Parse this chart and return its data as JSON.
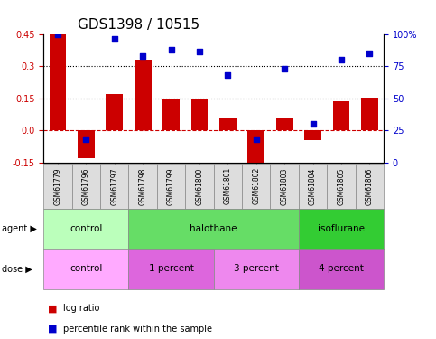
{
  "title": "GDS1398 / 10515",
  "categories": [
    "GSM61779",
    "GSM61796",
    "GSM61797",
    "GSM61798",
    "GSM61799",
    "GSM61800",
    "GSM61801",
    "GSM61802",
    "GSM61803",
    "GSM61804",
    "GSM61805",
    "GSM61806"
  ],
  "log_ratio": [
    0.45,
    -0.13,
    0.17,
    0.33,
    0.145,
    0.143,
    0.055,
    -0.155,
    0.06,
    -0.045,
    0.135,
    0.155
  ],
  "percentile_rank": [
    100,
    18,
    96,
    83,
    88,
    86,
    68,
    18,
    73,
    30,
    80,
    85
  ],
  "ylim_left": [
    -0.15,
    0.45
  ],
  "ylim_right": [
    0,
    100
  ],
  "yticks_left": [
    -0.15,
    0.0,
    0.15,
    0.3,
    0.45
  ],
  "yticks_right": [
    0,
    25,
    50,
    75,
    100
  ],
  "hlines": [
    0.15,
    0.3
  ],
  "bar_color": "#cc0000",
  "scatter_color": "#0000cc",
  "zero_line_color": "#cc0000",
  "agent_groups": [
    {
      "label": "control",
      "start": 0,
      "end": 3,
      "color": "#bbffbb"
    },
    {
      "label": "halothane",
      "start": 3,
      "end": 9,
      "color": "#66dd66"
    },
    {
      "label": "isoflurane",
      "start": 9,
      "end": 12,
      "color": "#33cc33"
    }
  ],
  "dose_groups": [
    {
      "label": "control",
      "start": 0,
      "end": 3,
      "color": "#ffaaff"
    },
    {
      "label": "1 percent",
      "start": 3,
      "end": 6,
      "color": "#dd66dd"
    },
    {
      "label": "3 percent",
      "start": 6,
      "end": 9,
      "color": "#ee88ee"
    },
    {
      "label": "4 percent",
      "start": 9,
      "end": 12,
      "color": "#cc55cc"
    }
  ],
  "legend_items": [
    {
      "label": "log ratio",
      "color": "#cc0000"
    },
    {
      "label": "percentile rank within the sample",
      "color": "#0000cc"
    }
  ],
  "bar_width": 0.6,
  "tick_label_fontsize": 7,
  "title_fontsize": 11
}
